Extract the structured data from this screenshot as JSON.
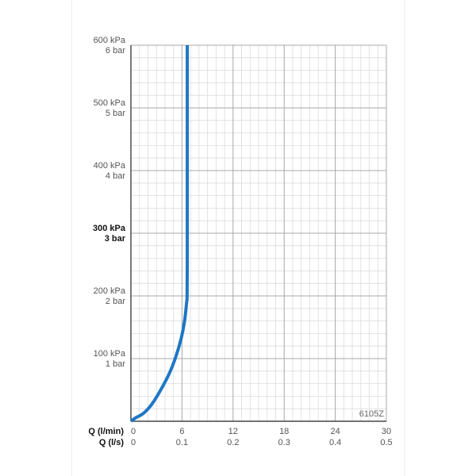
{
  "chart_data": {
    "type": "line",
    "code_label": "6105Z",
    "x_primary": {
      "label": "Q (l/min)",
      "range": [
        0,
        30
      ],
      "ticks": [
        0,
        6,
        12,
        18,
        24,
        30
      ],
      "tick_labels": [
        "0",
        "6",
        "12",
        "18",
        "24",
        "30"
      ]
    },
    "x_secondary": {
      "label": "Q (l/s)",
      "range": [
        0,
        0.5
      ],
      "tick_labels": [
        "0",
        "0.1",
        "0.2",
        "0.3",
        "0.4",
        "0.5"
      ]
    },
    "y_axis": {
      "range": [
        0,
        600
      ],
      "unit": "kPa",
      "ticks": [
        100,
        200,
        300,
        400,
        500,
        600
      ],
      "labels_kpa": [
        "100 kPa",
        "200 kPa",
        "300 kPa",
        "400 kPa",
        "500 kPa",
        "600 kPa"
      ],
      "labels_bar": [
        "1 bar",
        "2 bar",
        "3 bar",
        "4 bar",
        "5 bar",
        "6 bar"
      ],
      "emphasized_tick": 300
    },
    "grid": true,
    "series": [
      {
        "color": "#1f77c4",
        "x": [
          0,
          0.5,
          1.5,
          2.5,
          3.5,
          4.5,
          5.3,
          5.9,
          6.3,
          6.55,
          6.6,
          6.62,
          6.62,
          6.62,
          6.62
        ],
        "y": [
          0,
          5,
          13,
          28,
          50,
          76,
          104,
          132,
          160,
          190,
          200,
          250,
          350,
          500,
          600
        ]
      }
    ]
  }
}
